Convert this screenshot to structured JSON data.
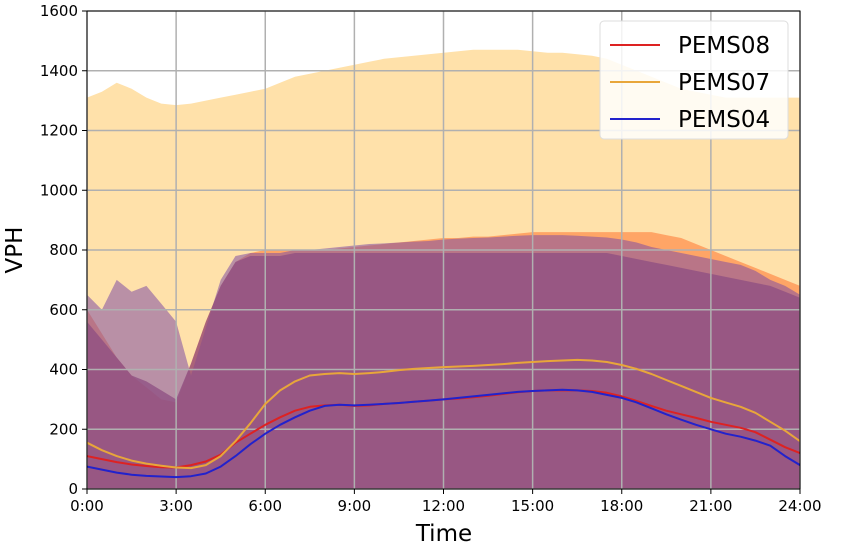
{
  "chart_data": {
    "type": "area",
    "xlabel": "Time",
    "ylabel": "VPH",
    "xlim": [
      0,
      24
    ],
    "ylim": [
      0,
      1600
    ],
    "xticks": [
      0,
      3,
      6,
      9,
      12,
      15,
      18,
      21,
      24
    ],
    "xtick_labels": [
      "0:00",
      "3:00",
      "6:00",
      "9:00",
      "12:00",
      "15:00",
      "18:00",
      "21:00",
      "24:00"
    ],
    "yticks": [
      0,
      200,
      400,
      600,
      800,
      1000,
      1200,
      1400,
      1600
    ],
    "ytick_labels": [
      "0",
      "200",
      "400",
      "600",
      "800",
      "1000",
      "1200",
      "1400",
      "1600"
    ],
    "grid": true,
    "legend_position": "top-right",
    "x": [
      0,
      0.5,
      1,
      1.5,
      2,
      2.5,
      3,
      3.5,
      4,
      4.5,
      5,
      5.5,
      6,
      6.5,
      7,
      7.5,
      8,
      8.5,
      9,
      9.5,
      10,
      10.5,
      11,
      11.5,
      12,
      12.5,
      13,
      13.5,
      14,
      14.5,
      15,
      15.5,
      16,
      16.5,
      17,
      17.5,
      18,
      18.5,
      19,
      19.5,
      20,
      20.5,
      21,
      21.5,
      22,
      22.5,
      23,
      23.5,
      24
    ],
    "series": [
      {
        "name": "PEMS08",
        "color": "#dd2222",
        "band_color": "#ff9a5a",
        "mean": [
          110,
          100,
          90,
          82,
          77,
          73,
          72,
          80,
          92,
          115,
          155,
          185,
          215,
          240,
          262,
          275,
          280,
          282,
          278,
          280,
          285,
          288,
          292,
          296,
          300,
          303,
          307,
          312,
          318,
          324,
          328,
          330,
          330,
          330,
          328,
          322,
          310,
          295,
          278,
          262,
          250,
          238,
          225,
          215,
          205,
          190,
          165,
          140,
          120
        ],
        "upper": [
          600,
          520,
          440,
          380,
          340,
          300,
          290,
          420,
          560,
          680,
          760,
          790,
          800,
          800,
          800,
          800,
          800,
          805,
          810,
          815,
          820,
          825,
          830,
          835,
          840,
          840,
          845,
          845,
          850,
          855,
          860,
          860,
          860,
          860,
          860,
          860,
          860,
          860,
          860,
          850,
          840,
          820,
          800,
          780,
          760,
          740,
          720,
          700,
          680
        ],
        "lower": [
          0,
          0,
          0,
          0,
          0,
          0,
          0,
          0,
          0,
          0,
          0,
          0,
          0,
          0,
          0,
          0,
          0,
          0,
          0,
          0,
          0,
          0,
          0,
          0,
          0,
          0,
          0,
          0,
          0,
          0,
          0,
          0,
          0,
          0,
          0,
          0,
          0,
          0,
          0,
          0,
          0,
          0,
          0,
          0,
          0,
          0,
          0,
          0,
          0
        ]
      },
      {
        "name": "PEMS07",
        "color": "#e8a63a",
        "band_color": "#ffe1aa",
        "mean": [
          155,
          130,
          110,
          95,
          85,
          78,
          72,
          70,
          80,
          110,
          160,
          220,
          285,
          330,
          360,
          380,
          385,
          388,
          385,
          388,
          392,
          398,
          402,
          405,
          408,
          410,
          412,
          415,
          418,
          422,
          425,
          428,
          430,
          432,
          430,
          425,
          415,
          402,
          385,
          365,
          345,
          325,
          305,
          290,
          275,
          255,
          225,
          195,
          160
        ],
        "upper": [
          1310,
          1330,
          1360,
          1340,
          1310,
          1290,
          1285,
          1290,
          1300,
          1310,
          1320,
          1330,
          1340,
          1360,
          1380,
          1390,
          1400,
          1410,
          1420,
          1430,
          1440,
          1445,
          1450,
          1455,
          1460,
          1465,
          1470,
          1470,
          1470,
          1470,
          1465,
          1460,
          1460,
          1455,
          1450,
          1440,
          1420,
          1400,
          1380,
          1360,
          1340,
          1330,
          1320,
          1310,
          1310,
          1310,
          1310,
          1310,
          1310
        ],
        "lower": [
          0,
          0,
          0,
          0,
          0,
          0,
          0,
          0,
          0,
          0,
          0,
          0,
          0,
          0,
          0,
          0,
          0,
          0,
          0,
          0,
          0,
          0,
          0,
          0,
          0,
          0,
          0,
          0,
          0,
          0,
          0,
          0,
          0,
          0,
          0,
          0,
          0,
          0,
          0,
          0,
          0,
          0,
          0,
          0,
          0,
          0,
          0,
          0,
          0
        ]
      },
      {
        "name": "PEMS04",
        "color": "#2222cc",
        "band_color": "#7f4fa3",
        "mean": [
          75,
          65,
          55,
          48,
          44,
          42,
          40,
          43,
          52,
          75,
          110,
          150,
          185,
          215,
          240,
          262,
          278,
          282,
          280,
          282,
          285,
          288,
          292,
          296,
          300,
          305,
          310,
          315,
          320,
          325,
          328,
          330,
          332,
          330,
          325,
          315,
          305,
          290,
          270,
          250,
          232,
          215,
          200,
          185,
          175,
          162,
          145,
          110,
          80
        ],
        "upper": [
          650,
          600,
          700,
          660,
          680,
          620,
          560,
          380,
          540,
          700,
          780,
          790,
          790,
          790,
          800,
          800,
          805,
          810,
          815,
          820,
          822,
          825,
          828,
          830,
          835,
          838,
          840,
          842,
          845,
          848,
          850,
          850,
          850,
          848,
          845,
          842,
          835,
          825,
          810,
          800,
          790,
          780,
          770,
          760,
          750,
          730,
          700,
          680,
          650
        ],
        "lower": [
          0,
          0,
          0,
          0,
          0,
          0,
          0,
          0,
          0,
          0,
          0,
          0,
          0,
          0,
          0,
          0,
          0,
          0,
          0,
          0,
          0,
          0,
          0,
          0,
          0,
          0,
          0,
          0,
          0,
          0,
          0,
          0,
          0,
          0,
          0,
          0,
          0,
          0,
          0,
          0,
          0,
          0,
          0,
          0,
          0,
          0,
          0,
          0,
          0
        ]
      }
    ],
    "purple_fill_upper": [
      560,
      500,
      440,
      380,
      360,
      330,
      300,
      420,
      560,
      680,
      760,
      780,
      780,
      780,
      790,
      790,
      790,
      790,
      790,
      790,
      790,
      790,
      790,
      790,
      790,
      790,
      790,
      790,
      790,
      790,
      790,
      790,
      790,
      790,
      790,
      790,
      780,
      770,
      760,
      750,
      740,
      730,
      720,
      710,
      700,
      690,
      680,
      660,
      640
    ]
  }
}
